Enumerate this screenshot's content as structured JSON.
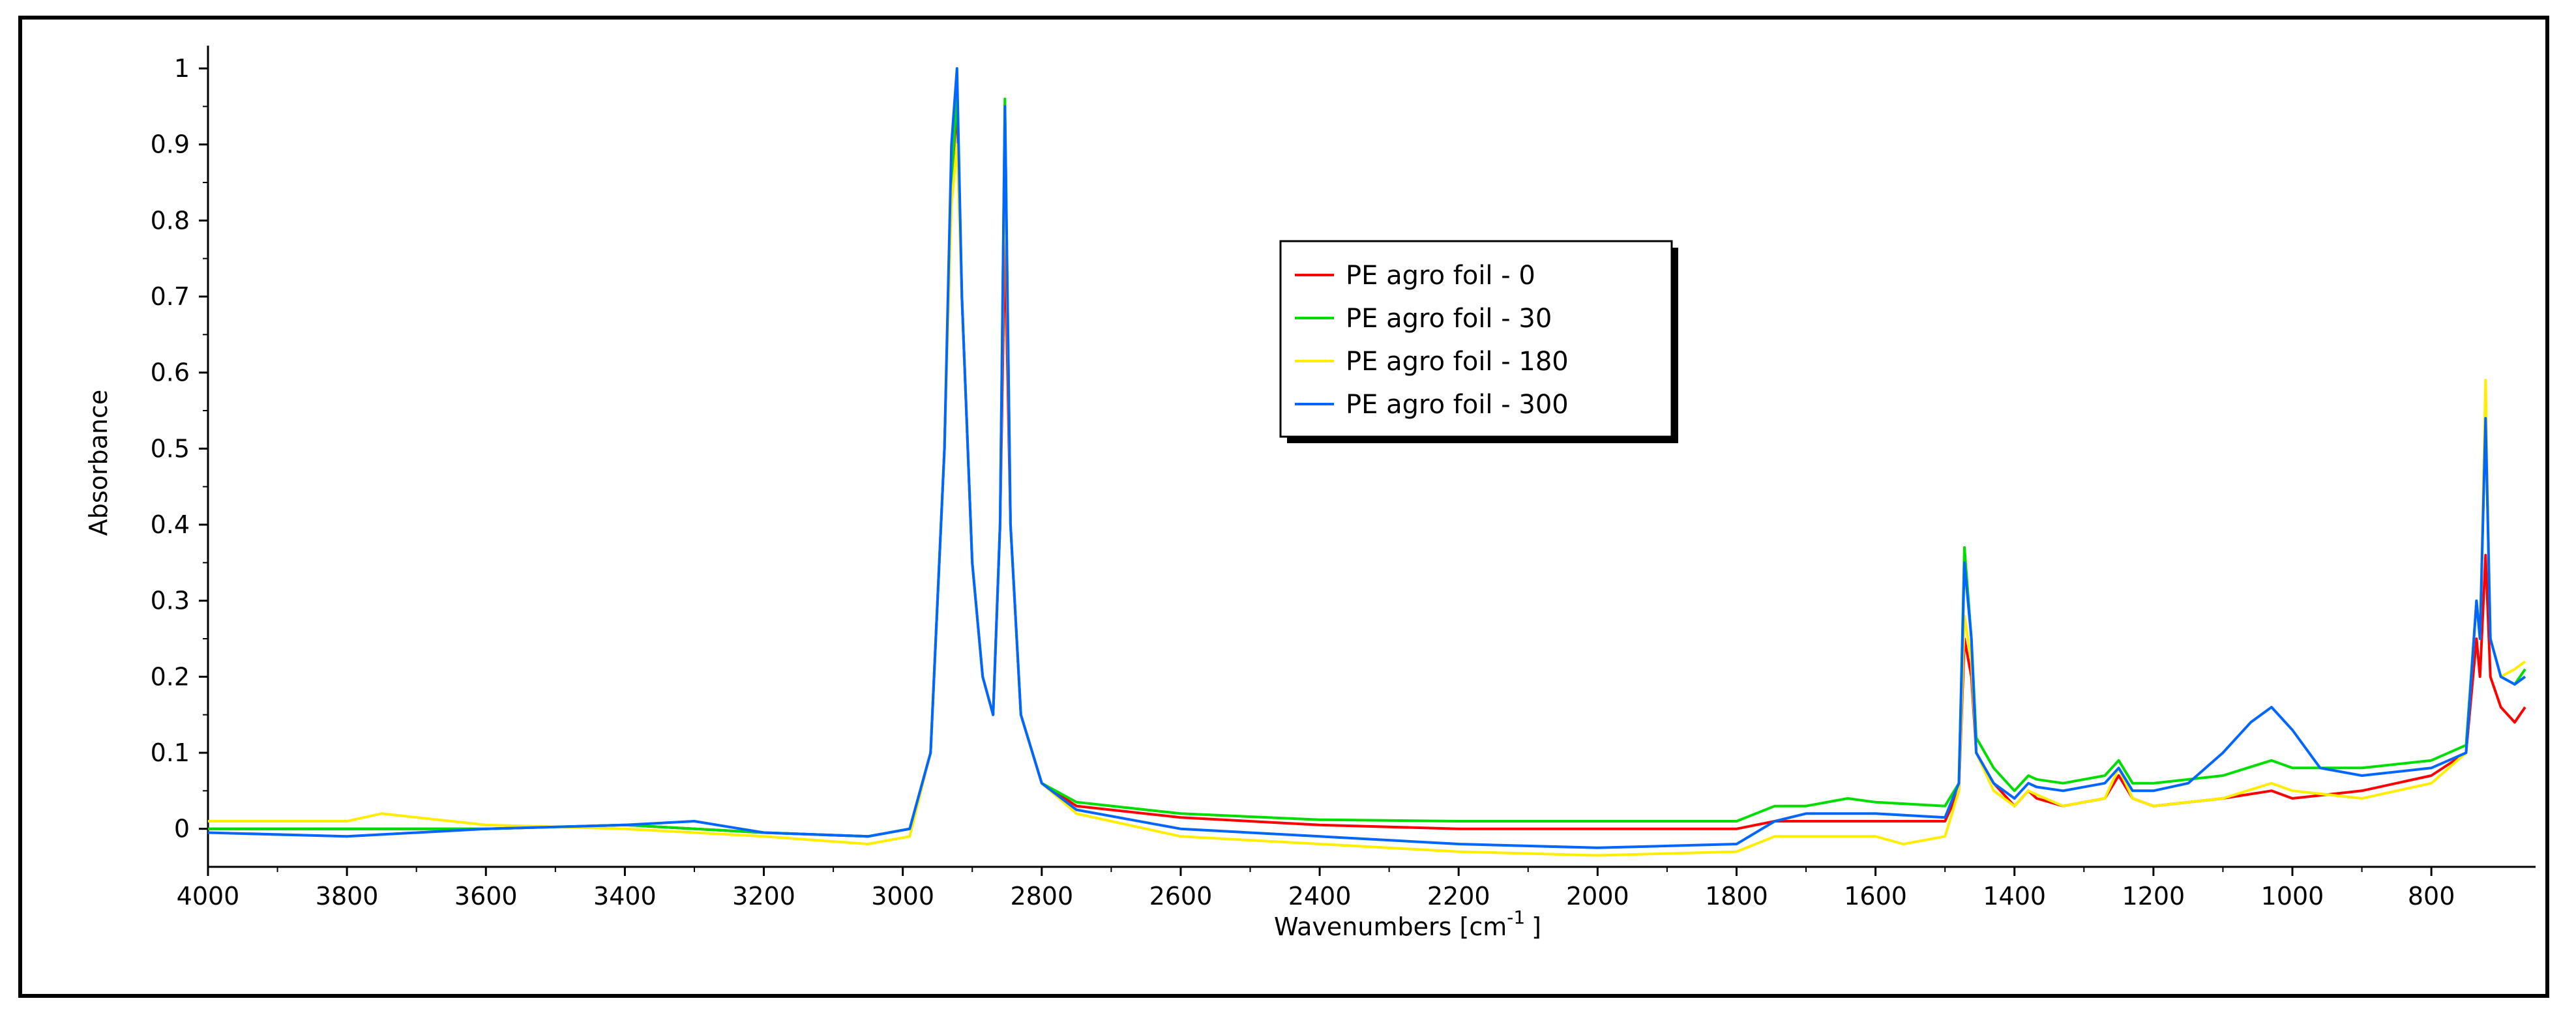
{
  "chart_data": {
    "type": "line",
    "xlabel": "Wavenumbers [cm",
    "xlabel_superscript": "-1",
    "xlabel_suffix": "]",
    "ylabel": "Absorbance",
    "x_reversed": true,
    "xlim": [
      4000,
      650
    ],
    "ylim": [
      -0.05,
      1.03
    ],
    "x_ticks": [
      4000,
      3800,
      3600,
      3400,
      3200,
      3000,
      2800,
      2600,
      2400,
      2200,
      2000,
      1800,
      1600,
      1400,
      1200,
      1000,
      800
    ],
    "y_ticks": [
      0,
      0.1,
      0.2,
      0.3,
      0.4,
      0.5,
      0.6,
      0.7,
      0.8,
      0.9,
      1
    ],
    "y_tick_labels": [
      "0",
      "0.1",
      "0.2",
      "0.3",
      "0.4",
      "0.5",
      "0.6",
      "0.7",
      "0.8",
      "0.9",
      "1"
    ],
    "legend_position": "upper-center",
    "series": [
      {
        "name": "PE agro foil - 0",
        "color": "#ff0000",
        "points": [
          [
            4000,
            0.0
          ],
          [
            3800,
            0.0
          ],
          [
            3600,
            0.0
          ],
          [
            3400,
            0.005
          ],
          [
            3200,
            -0.005
          ],
          [
            3050,
            -0.01
          ],
          [
            2990,
            0.0
          ],
          [
            2960,
            0.1
          ],
          [
            2940,
            0.5
          ],
          [
            2930,
            0.85
          ],
          [
            2922,
            0.95
          ],
          [
            2915,
            0.7
          ],
          [
            2900,
            0.35
          ],
          [
            2885,
            0.2
          ],
          [
            2870,
            0.15
          ],
          [
            2860,
            0.4
          ],
          [
            2853,
            0.78
          ],
          [
            2845,
            0.4
          ],
          [
            2830,
            0.15
          ],
          [
            2800,
            0.06
          ],
          [
            2750,
            0.03
          ],
          [
            2600,
            0.015
          ],
          [
            2400,
            0.005
          ],
          [
            2200,
            0.0
          ],
          [
            2000,
            0.0
          ],
          [
            1800,
            0.0
          ],
          [
            1745,
            0.01
          ],
          [
            1700,
            0.01
          ],
          [
            1600,
            0.01
          ],
          [
            1500,
            0.01
          ],
          [
            1480,
            0.05
          ],
          [
            1472,
            0.25
          ],
          [
            1462,
            0.2
          ],
          [
            1455,
            0.1
          ],
          [
            1430,
            0.06
          ],
          [
            1400,
            0.03
          ],
          [
            1380,
            0.05
          ],
          [
            1368,
            0.04
          ],
          [
            1330,
            0.03
          ],
          [
            1270,
            0.04
          ],
          [
            1250,
            0.07
          ],
          [
            1230,
            0.04
          ],
          [
            1200,
            0.03
          ],
          [
            1100,
            0.04
          ],
          [
            1030,
            0.05
          ],
          [
            1000,
            0.04
          ],
          [
            900,
            0.05
          ],
          [
            800,
            0.07
          ],
          [
            750,
            0.1
          ],
          [
            735,
            0.25
          ],
          [
            730,
            0.2
          ],
          [
            722,
            0.36
          ],
          [
            715,
            0.2
          ],
          [
            700,
            0.16
          ],
          [
            680,
            0.14
          ],
          [
            665,
            0.16
          ]
        ]
      },
      {
        "name": "PE agro foil - 30",
        "color": "#00dd00",
        "points": [
          [
            4000,
            0.0
          ],
          [
            3800,
            0.0
          ],
          [
            3600,
            0.0
          ],
          [
            3400,
            0.005
          ],
          [
            3200,
            -0.005
          ],
          [
            3050,
            -0.01
          ],
          [
            2990,
            0.0
          ],
          [
            2960,
            0.1
          ],
          [
            2940,
            0.5
          ],
          [
            2930,
            0.85
          ],
          [
            2922,
            0.97
          ],
          [
            2915,
            0.7
          ],
          [
            2900,
            0.35
          ],
          [
            2885,
            0.2
          ],
          [
            2870,
            0.15
          ],
          [
            2860,
            0.4
          ],
          [
            2853,
            0.96
          ],
          [
            2845,
            0.4
          ],
          [
            2830,
            0.15
          ],
          [
            2800,
            0.06
          ],
          [
            2750,
            0.035
          ],
          [
            2600,
            0.02
          ],
          [
            2400,
            0.012
          ],
          [
            2200,
            0.01
          ],
          [
            2000,
            0.01
          ],
          [
            1800,
            0.01
          ],
          [
            1745,
            0.03
          ],
          [
            1700,
            0.03
          ],
          [
            1640,
            0.04
          ],
          [
            1600,
            0.035
          ],
          [
            1500,
            0.03
          ],
          [
            1480,
            0.06
          ],
          [
            1472,
            0.37
          ],
          [
            1462,
            0.25
          ],
          [
            1455,
            0.12
          ],
          [
            1430,
            0.08
          ],
          [
            1400,
            0.05
          ],
          [
            1380,
            0.07
          ],
          [
            1368,
            0.065
          ],
          [
            1330,
            0.06
          ],
          [
            1270,
            0.07
          ],
          [
            1250,
            0.09
          ],
          [
            1230,
            0.06
          ],
          [
            1200,
            0.06
          ],
          [
            1100,
            0.07
          ],
          [
            1030,
            0.09
          ],
          [
            1000,
            0.08
          ],
          [
            900,
            0.08
          ],
          [
            800,
            0.09
          ],
          [
            750,
            0.11
          ],
          [
            735,
            0.3
          ],
          [
            730,
            0.25
          ],
          [
            722,
            0.55
          ],
          [
            715,
            0.25
          ],
          [
            700,
            0.2
          ],
          [
            680,
            0.19
          ],
          [
            665,
            0.21
          ]
        ]
      },
      {
        "name": "PE agro foil - 180",
        "color": "#ffee00",
        "points": [
          [
            4000,
            0.01
          ],
          [
            3800,
            0.01
          ],
          [
            3750,
            0.02
          ],
          [
            3600,
            0.005
          ],
          [
            3400,
            0.0
          ],
          [
            3200,
            -0.01
          ],
          [
            3050,
            -0.02
          ],
          [
            2990,
            -0.01
          ],
          [
            2960,
            0.1
          ],
          [
            2940,
            0.5
          ],
          [
            2930,
            0.82
          ],
          [
            2922,
            0.9
          ],
          [
            2915,
            0.7
          ],
          [
            2900,
            0.35
          ],
          [
            2885,
            0.2
          ],
          [
            2870,
            0.15
          ],
          [
            2860,
            0.4
          ],
          [
            2853,
            0.9
          ],
          [
            2845,
            0.4
          ],
          [
            2830,
            0.15
          ],
          [
            2800,
            0.06
          ],
          [
            2750,
            0.02
          ],
          [
            2600,
            -0.01
          ],
          [
            2400,
            -0.02
          ],
          [
            2200,
            -0.03
          ],
          [
            2000,
            -0.035
          ],
          [
            1800,
            -0.03
          ],
          [
            1745,
            -0.01
          ],
          [
            1700,
            -0.01
          ],
          [
            1600,
            -0.01
          ],
          [
            1560,
            -0.02
          ],
          [
            1500,
            -0.01
          ],
          [
            1480,
            0.05
          ],
          [
            1472,
            0.28
          ],
          [
            1462,
            0.22
          ],
          [
            1455,
            0.1
          ],
          [
            1430,
            0.05
          ],
          [
            1400,
            0.03
          ],
          [
            1380,
            0.05
          ],
          [
            1368,
            0.045
          ],
          [
            1330,
            0.03
          ],
          [
            1270,
            0.04
          ],
          [
            1250,
            0.08
          ],
          [
            1230,
            0.04
          ],
          [
            1200,
            0.03
          ],
          [
            1100,
            0.04
          ],
          [
            1030,
            0.06
          ],
          [
            1000,
            0.05
          ],
          [
            900,
            0.04
          ],
          [
            800,
            0.06
          ],
          [
            750,
            0.1
          ],
          [
            735,
            0.3
          ],
          [
            730,
            0.25
          ],
          [
            722,
            0.59
          ],
          [
            715,
            0.25
          ],
          [
            700,
            0.2
          ],
          [
            680,
            0.21
          ],
          [
            665,
            0.22
          ]
        ]
      },
      {
        "name": "PE agro foil - 300",
        "color": "#0066ff",
        "points": [
          [
            4000,
            -0.005
          ],
          [
            3800,
            -0.01
          ],
          [
            3600,
            0.0
          ],
          [
            3400,
            0.005
          ],
          [
            3300,
            0.01
          ],
          [
            3200,
            -0.005
          ],
          [
            3050,
            -0.01
          ],
          [
            2990,
            0.0
          ],
          [
            2960,
            0.1
          ],
          [
            2940,
            0.5
          ],
          [
            2930,
            0.9
          ],
          [
            2922,
            1.0
          ],
          [
            2915,
            0.7
          ],
          [
            2900,
            0.35
          ],
          [
            2885,
            0.2
          ],
          [
            2870,
            0.15
          ],
          [
            2860,
            0.4
          ],
          [
            2853,
            0.95
          ],
          [
            2845,
            0.4
          ],
          [
            2830,
            0.15
          ],
          [
            2800,
            0.06
          ],
          [
            2750,
            0.025
          ],
          [
            2600,
            0.0
          ],
          [
            2400,
            -0.01
          ],
          [
            2200,
            -0.02
          ],
          [
            2000,
            -0.025
          ],
          [
            1800,
            -0.02
          ],
          [
            1745,
            0.01
          ],
          [
            1700,
            0.02
          ],
          [
            1600,
            0.02
          ],
          [
            1500,
            0.015
          ],
          [
            1480,
            0.06
          ],
          [
            1472,
            0.35
          ],
          [
            1462,
            0.25
          ],
          [
            1455,
            0.1
          ],
          [
            1430,
            0.06
          ],
          [
            1400,
            0.04
          ],
          [
            1380,
            0.06
          ],
          [
            1368,
            0.055
          ],
          [
            1330,
            0.05
          ],
          [
            1270,
            0.06
          ],
          [
            1250,
            0.08
          ],
          [
            1230,
            0.05
          ],
          [
            1200,
            0.05
          ],
          [
            1150,
            0.06
          ],
          [
            1100,
            0.1
          ],
          [
            1060,
            0.14
          ],
          [
            1030,
            0.16
          ],
          [
            1000,
            0.13
          ],
          [
            960,
            0.08
          ],
          [
            900,
            0.07
          ],
          [
            800,
            0.08
          ],
          [
            750,
            0.1
          ],
          [
            735,
            0.3
          ],
          [
            730,
            0.25
          ],
          [
            722,
            0.54
          ],
          [
            715,
            0.25
          ],
          [
            700,
            0.2
          ],
          [
            680,
            0.19
          ],
          [
            665,
            0.2
          ]
        ]
      }
    ]
  }
}
